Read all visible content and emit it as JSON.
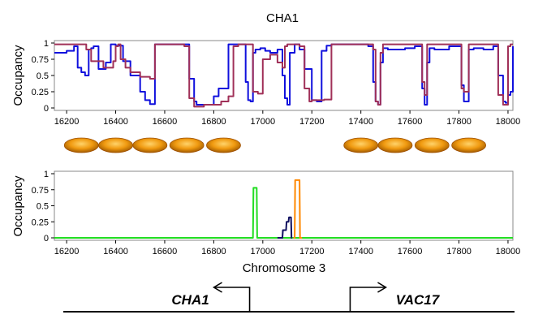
{
  "chart_data": [
    {
      "type": "line",
      "title": "CHA1",
      "ylabel": "Occupancy",
      "xlim": [
        16150,
        18020
      ],
      "ylim": [
        0,
        1
      ],
      "xticks": [
        16200,
        16400,
        16600,
        16800,
        17000,
        17200,
        17400,
        17600,
        17800,
        18000
      ],
      "yticks": [
        0,
        0.25,
        0.5,
        0.75,
        1
      ],
      "ytick_labels": [
        "0",
        "0.25",
        "0.5",
        "0.75",
        "1"
      ],
      "series": [
        {
          "name": "blue",
          "color": "#1010dd",
          "x": [
            16150,
            16200,
            16230,
            16245,
            16260,
            16275,
            16290,
            16300,
            16310,
            16330,
            16360,
            16380,
            16400,
            16430,
            16460,
            16500,
            16520,
            16540,
            16560,
            16590,
            16650,
            16680,
            16700,
            16720,
            16730,
            16760,
            16800,
            16820,
            16860,
            16880,
            16910,
            16930,
            16940,
            16950,
            16960,
            16970,
            16990,
            17010,
            17030,
            17060,
            17080,
            17090,
            17100,
            17110,
            17130,
            17150,
            17170,
            17200,
            17220,
            17240,
            17260,
            17280,
            17300,
            17320,
            17360,
            17400,
            17430,
            17450,
            17460,
            17470,
            17480,
            17490,
            17510,
            17540,
            17580,
            17620,
            17640,
            17650,
            17660,
            17670,
            17680,
            17700,
            17720,
            17760,
            17800,
            17810,
            17820,
            17840,
            17860,
            17900,
            17940,
            17960,
            17980,
            17990,
            18000,
            18010,
            18020
          ],
          "y": [
            0.85,
            0.88,
            0.95,
            0.62,
            0.55,
            0.5,
            0.9,
            0.92,
            0.95,
            0.6,
            0.7,
            0.98,
            0.96,
            0.72,
            0.5,
            0.25,
            0.12,
            0.06,
            0.98,
            0.98,
            0.98,
            0.98,
            0.45,
            0.1,
            0.05,
            0.05,
            0.18,
            0.3,
            0.98,
            0.98,
            0.98,
            0.4,
            0.12,
            0.1,
            0.85,
            0.9,
            0.92,
            0.88,
            0.85,
            0.9,
            0.5,
            0.15,
            0.05,
            0.85,
            0.98,
            0.9,
            0.6,
            0.12,
            0.1,
            0.88,
            0.96,
            0.98,
            0.98,
            0.98,
            0.98,
            0.98,
            0.95,
            0.4,
            0.1,
            0.05,
            0.7,
            0.92,
            0.9,
            0.9,
            0.92,
            0.95,
            0.95,
            0.3,
            0.05,
            0.7,
            0.92,
            0.9,
            0.9,
            0.95,
            0.95,
            0.35,
            0.1,
            0.9,
            0.92,
            0.9,
            0.95,
            0.5,
            0.1,
            0.08,
            0.2,
            0.25,
            0.95
          ]
        },
        {
          "name": "red",
          "color": "#a03058",
          "x": [
            16150,
            16200,
            16260,
            16280,
            16300,
            16350,
            16390,
            16400,
            16410,
            16420,
            16440,
            16460,
            16500,
            16540,
            16560,
            16600,
            16650,
            16680,
            16700,
            16720,
            16740,
            16760,
            16800,
            16830,
            16860,
            16880,
            16900,
            16920,
            16940,
            16960,
            16980,
            17000,
            17030,
            17060,
            17080,
            17090,
            17100,
            17110,
            17130,
            17150,
            17170,
            17190,
            17200,
            17220,
            17250,
            17280,
            17300,
            17330,
            17360,
            17400,
            17430,
            17450,
            17460,
            17470,
            17480,
            17490,
            17510,
            17540,
            17580,
            17620,
            17640,
            17650,
            17660,
            17670,
            17680,
            17700,
            17720,
            17760,
            17800,
            17810,
            17820,
            17840,
            17860,
            17900,
            17940,
            17960,
            17980,
            17990,
            18000,
            18010,
            18020
          ],
          "y": [
            0.98,
            0.98,
            0.98,
            0.9,
            0.72,
            0.62,
            0.72,
            0.95,
            0.98,
            0.75,
            0.62,
            0.55,
            0.48,
            0.45,
            0.98,
            0.98,
            0.98,
            0.95,
            0.15,
            0.02,
            0.02,
            0.05,
            0.05,
            0.1,
            0.18,
            0.95,
            0.98,
            0.98,
            0.98,
            0.25,
            0.22,
            0.75,
            0.82,
            0.7,
            0.62,
            0.95,
            0.98,
            0.98,
            0.98,
            0.95,
            0.3,
            0.1,
            0.12,
            0.12,
            0.13,
            0.98,
            0.98,
            0.98,
            0.98,
            0.98,
            0.98,
            0.9,
            0.1,
            0.05,
            0.85,
            0.98,
            0.98,
            0.98,
            0.98,
            0.98,
            0.98,
            0.4,
            0.2,
            0.98,
            0.98,
            0.98,
            0.98,
            0.98,
            0.98,
            0.3,
            0.25,
            0.98,
            0.98,
            0.98,
            0.98,
            0.2,
            0.05,
            0.05,
            0.95,
            0.98,
            0.98
          ]
        }
      ]
    },
    {
      "type": "line",
      "ylabel": "Occupancy",
      "xlabel": "Chromosome 3",
      "xlim": [
        16150,
        18020
      ],
      "ylim": [
        0,
        1
      ],
      "xticks": [
        16200,
        16400,
        16600,
        16800,
        17000,
        17200,
        17400,
        17600,
        17800,
        18000
      ],
      "yticks": [
        0,
        0.25,
        0.5,
        0.75,
        1
      ],
      "ytick_labels": [
        "0",
        "0.25",
        "0.5",
        "0.75",
        "1"
      ],
      "series": [
        {
          "name": "green",
          "color": "#22dd22",
          "x": [
            16150,
            16960,
            16962,
            16975,
            16977,
            18020
          ],
          "y": [
            0,
            0,
            0.78,
            0.78,
            0,
            0
          ]
        },
        {
          "name": "navy",
          "color": "#101060",
          "x": [
            17060,
            17080,
            17082,
            17095,
            17097,
            17105,
            17107,
            17115,
            17117,
            17120
          ],
          "y": [
            0,
            0,
            0.12,
            0.12,
            0.25,
            0.25,
            0.32,
            0.32,
            0,
            0
          ]
        },
        {
          "name": "orange",
          "color": "#ff8800",
          "x": [
            17125,
            17130,
            17132,
            17150,
            17152,
            17160
          ],
          "y": [
            0,
            0,
            0.9,
            0.9,
            0,
            0
          ]
        }
      ]
    }
  ],
  "nucleosomes": [
    16260,
    16400,
    16540,
    16690,
    16840,
    17400,
    17540,
    17690,
    17840
  ],
  "genes": [
    {
      "name": "CHA1",
      "direction": "left",
      "tss": 16880
    },
    {
      "name": "VAC17",
      "direction": "right",
      "tss": 17290
    }
  ],
  "colors": {
    "nucleosome_fill": "#f09a10",
    "nucleosome_edge": "#a05000",
    "frame": "#888888"
  }
}
